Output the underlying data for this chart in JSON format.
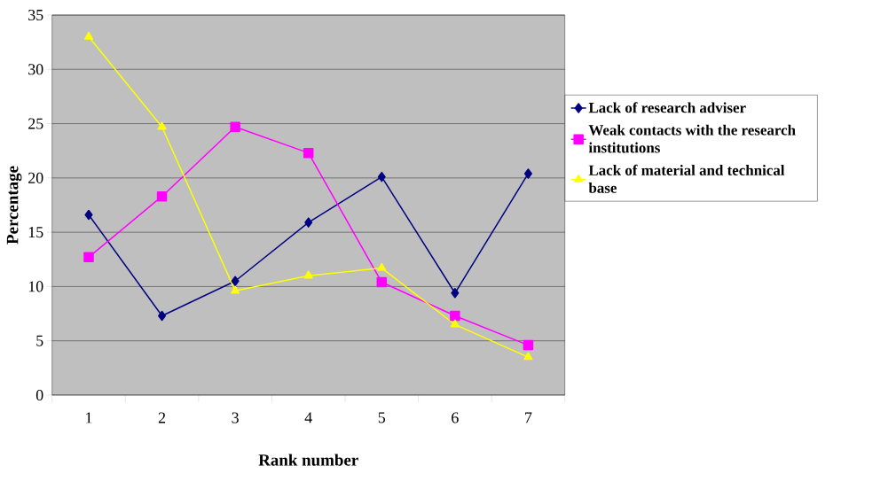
{
  "chart_data": {
    "type": "line",
    "xlabel": "Rank number",
    "ylabel": "Percentage",
    "categories": [
      "1",
      "2",
      "3",
      "4",
      "5",
      "6",
      "7"
    ],
    "ylim": [
      0,
      35
    ],
    "yticks": [
      0,
      5,
      10,
      15,
      20,
      25,
      30,
      35
    ],
    "grid": "y",
    "legend": "right",
    "series": [
      {
        "name": "Lack of research adviser",
        "color": "#000080",
        "marker": "diamond",
        "values": [
          16.6,
          7.3,
          10.5,
          15.9,
          20.1,
          9.4,
          20.4
        ]
      },
      {
        "name": "Weak contacts with the research institutions",
        "color": "#ff00ff",
        "marker": "square",
        "values": [
          12.7,
          18.3,
          24.7,
          22.3,
          10.4,
          7.3,
          4.6
        ]
      },
      {
        "name": "Lack of material and technical base",
        "color": "#ffff00",
        "marker": "triangle",
        "values": [
          33.0,
          24.7,
          9.6,
          11.0,
          11.7,
          6.5,
          3.5
        ]
      }
    ]
  }
}
